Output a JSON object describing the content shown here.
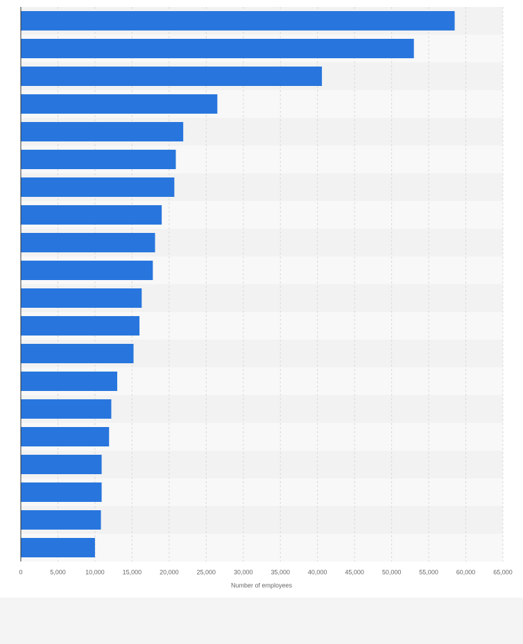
{
  "chart_data": {
    "type": "bar",
    "orientation": "horizontal",
    "x_label": "Number of employees",
    "categories": [
      null,
      null,
      null,
      null,
      null,
      null,
      null,
      null,
      null,
      null,
      null,
      null,
      null,
      null,
      null,
      null,
      null,
      null,
      null,
      null
    ],
    "values": [
      58500,
      53000,
      40600,
      26500,
      21900,
      20900,
      20700,
      19000,
      18100,
      17800,
      16300,
      16000,
      15200,
      13000,
      12200,
      11900,
      10900,
      10900,
      10800,
      10000
    ],
    "color": "#2876dd",
    "xlim": [
      0,
      65000
    ],
    "xticks": [
      0,
      {
        "value": 5000,
        "label": "5,000"
      },
      {
        "value": 10000,
        "label": "10,000"
      },
      {
        "value": 15000,
        "label": "15,000"
      },
      {
        "value": 20000,
        "label": "20,000"
      },
      {
        "value": 25000,
        "label": "25,000"
      },
      {
        "value": 30000,
        "label": "30,000"
      },
      {
        "value": 35000,
        "label": "35,000"
      },
      {
        "value": 40000,
        "label": "40,000"
      },
      {
        "value": 45000,
        "label": "45,000"
      },
      {
        "value": 50000,
        "label": "50,000"
      },
      {
        "value": 55000,
        "label": "55,000"
      },
      {
        "value": 60000,
        "label": "60,000"
      },
      {
        "value": 65000,
        "label": "65,000"
      }
    ],
    "grid": true
  }
}
